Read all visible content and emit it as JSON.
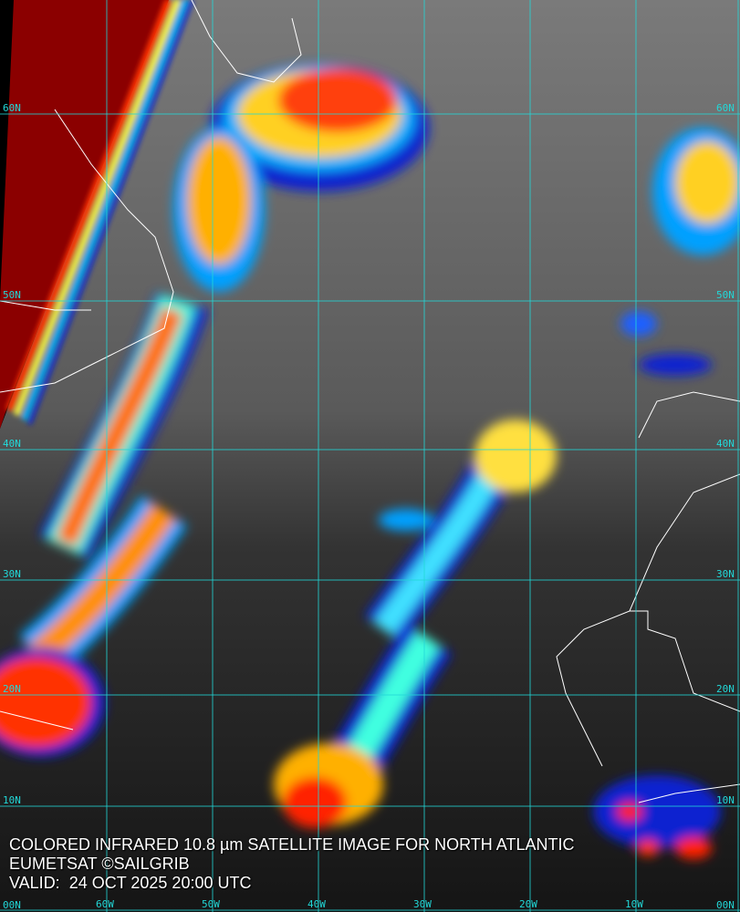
{
  "caption": {
    "line1": "COLORED INFRARED 10.8 µm SATELLITE IMAGE FOR NORTH ATLANTIC",
    "line2": "EUMETSAT ©SAILGRIB",
    "line3": "VALID:  24 OCT 2025 20:00 UTC"
  },
  "grid": {
    "latitudes": [
      "60N",
      "50N",
      "40N",
      "30N",
      "20N",
      "10N",
      "00N"
    ],
    "longitudes": [
      "60W",
      "50W",
      "40W",
      "30W",
      "20W",
      "10W",
      "00W"
    ],
    "color": "#22d8d8"
  },
  "colors": {
    "coastline": "#ffffff",
    "cold_cloud_scale": [
      "#1020d0",
      "#00a0ff",
      "#40ffe0",
      "#ffff40",
      "#ff9000",
      "#ff2000",
      "#8b0000"
    ]
  }
}
